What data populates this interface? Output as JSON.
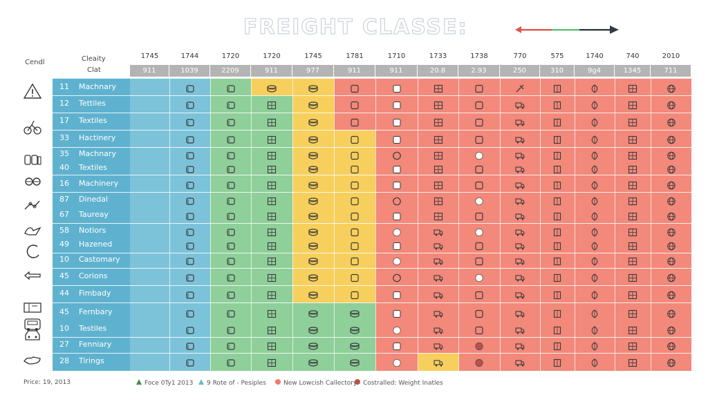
{
  "title": "FREIGHT CLASSE:",
  "corner_left": "Cendl",
  "corner_class_line1": "Cleaity",
  "corner_class_line2": "Clat",
  "columns": [
    {
      "top": "1745",
      "bar": "911"
    },
    {
      "top": "1744",
      "bar": "1039"
    },
    {
      "top": "1720",
      "bar": "2209"
    },
    {
      "top": "1720",
      "bar": "911"
    },
    {
      "top": "1745",
      "bar": "977"
    },
    {
      "top": "1781",
      "bar": "911"
    },
    {
      "top": "1710",
      "bar": "911"
    },
    {
      "top": "1733",
      "bar": "20.8"
    },
    {
      "top": "1738",
      "bar": "2.93"
    },
    {
      "top": "770",
      "bar": "250"
    },
    {
      "top": "575",
      "bar": "310"
    },
    {
      "top": "1740",
      "bar": "9g4"
    },
    {
      "top": "740",
      "bar": "1345"
    },
    {
      "top": "2010",
      "bar": "711"
    }
  ],
  "rows": [
    {
      "num": "11",
      "name": "Machnary"
    },
    {
      "num": "12",
      "name": "Tettiles"
    },
    {
      "num": "17",
      "name": "Textiles"
    },
    {
      "num": "33",
      "name": "Hactinery"
    },
    {
      "num": "35",
      "name": "Machnary"
    },
    {
      "num": "40",
      "name": "Textiles"
    },
    {
      "num": "16",
      "name": "Machinery"
    },
    {
      "num": "87",
      "name": "Dinedal"
    },
    {
      "num": "67",
      "name": "Taureay"
    },
    {
      "num": "58",
      "name": "Notiors"
    },
    {
      "num": "49",
      "name": "Hazened"
    },
    {
      "num": "10",
      "name": "Castomary"
    },
    {
      "num": "45",
      "name": "Corions"
    },
    {
      "num": "44",
      "name": "Fimbady"
    },
    {
      "num": "45",
      "name": "Fernbary"
    },
    {
      "num": "10",
      "name": "Testiles"
    },
    {
      "num": "27",
      "name": "Fenniary"
    },
    {
      "num": "28",
      "name": "Tirings"
    }
  ],
  "side_icons": [
    "warning-icon",
    "bicycle-icon",
    "cans-icon",
    "goggles-icon",
    "dumbbell-icon",
    "bird-icon",
    "ring-icon",
    "arrow-icon",
    "flag-icon",
    "bus-icon",
    "car-icon",
    "shoe-icon"
  ],
  "footnote": "Price: 19, 2013",
  "legend": [
    {
      "marker": "triangle",
      "color": "#3f8f4e",
      "label": "Foce 0Ty1 2013"
    },
    {
      "marker": "triangle",
      "color": "#6ab7c9",
      "label": "9 Rote of - Pesiples"
    },
    {
      "marker": "circle",
      "color": "#f07a6e",
      "label": "New Lowcish Callectory"
    },
    {
      "marker": "circle",
      "color": "#b5544c",
      "label": "Costralled: Weight Inatles"
    }
  ],
  "colors": {
    "blue": "#7cc3da",
    "green": "#8fcf9a",
    "yellow": "#f7cf5c",
    "red": "#f2897b",
    "header_bar": "#b4b4b4",
    "arrow_red": "#e0564a",
    "arrow_green": "#5cbf73",
    "arrow_dark": "#333a44"
  }
}
